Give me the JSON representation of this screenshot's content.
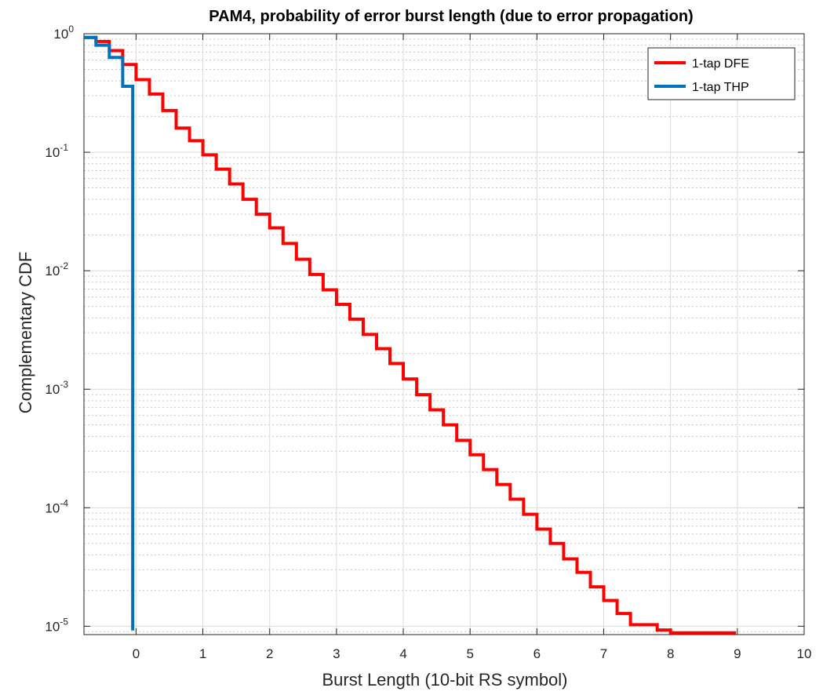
{
  "chart_data": {
    "type": "line",
    "title": "PAM4, probability of error burst length (due to error propagation)",
    "xlabel": "Burst Length (10-bit RS symbol)",
    "ylabel": "Complementary CDF",
    "xlim": [
      -0.78,
      10
    ],
    "ylim": [
      8.5e-06,
      1.0
    ],
    "yscale": "log",
    "grid": true,
    "minor_grid": true,
    "legend_position": "top-right",
    "x_ticks": [
      0,
      1,
      2,
      3,
      4,
      5,
      6,
      7,
      8,
      9,
      10
    ],
    "x_tick_labels": [
      "0",
      "1",
      "2",
      "3",
      "4",
      "5",
      "6",
      "7",
      "8",
      "9",
      "10"
    ],
    "y_ticks": [
      {
        "value": 1e-05,
        "base": "10",
        "exp": "-5"
      },
      {
        "value": 0.0001,
        "base": "10",
        "exp": "-4"
      },
      {
        "value": 0.001,
        "base": "10",
        "exp": "-3"
      },
      {
        "value": 0.01,
        "base": "10",
        "exp": "-2"
      },
      {
        "value": 0.1,
        "base": "10",
        "exp": "-1"
      },
      {
        "value": 1,
        "base": "10",
        "exp": "0"
      }
    ],
    "series": [
      {
        "name": "1-tap DFE",
        "color": "#ff0000",
        "step": true,
        "x": [
          -0.78,
          -0.6,
          -0.4,
          -0.2,
          0.0,
          0.2,
          0.4,
          0.6,
          0.8,
          1.0,
          1.2,
          1.4,
          1.6,
          1.8,
          2.0,
          2.2,
          2.4,
          2.6,
          2.8,
          3.0,
          3.2,
          3.4,
          3.6,
          3.8,
          4.0,
          4.2,
          4.4,
          4.6,
          4.8,
          5.0,
          5.2,
          5.4,
          5.6,
          5.8,
          6.0,
          6.2,
          6.4,
          6.6,
          6.8,
          7.0,
          7.2,
          7.4,
          7.6,
          7.8,
          8.0,
          8.2,
          8.4,
          8.6,
          8.8,
          8.98
        ],
        "y": [
          0.93,
          0.86,
          0.72,
          0.55,
          0.41,
          0.31,
          0.225,
          0.16,
          0.125,
          0.095,
          0.072,
          0.054,
          0.04,
          0.03,
          0.023,
          0.017,
          0.0125,
          0.0093,
          0.0069,
          0.0052,
          0.0039,
          0.0029,
          0.0022,
          0.00165,
          0.00122,
          0.0009,
          0.00067,
          0.0005,
          0.00037,
          0.00028,
          0.00021,
          0.000157,
          0.000118,
          8.8e-05,
          6.6e-05,
          5e-05,
          3.7e-05,
          2.85e-05,
          2.15e-05,
          1.65e-05,
          1.28e-05,
          1.03e-05,
          1.03e-05,
          9.3e-06,
          8.8e-06,
          8.8e-06,
          8.8e-06,
          8.8e-06,
          8.8e-06,
          8.8e-06
        ]
      },
      {
        "name": "1-tap THP",
        "color": "#0072bd",
        "step": true,
        "x": [
          -0.78,
          -0.6,
          -0.4,
          -0.2,
          -0.05,
          -0.05
        ],
        "y": [
          0.93,
          0.8,
          0.63,
          0.36,
          0.36,
          9.2e-06
        ]
      }
    ]
  }
}
